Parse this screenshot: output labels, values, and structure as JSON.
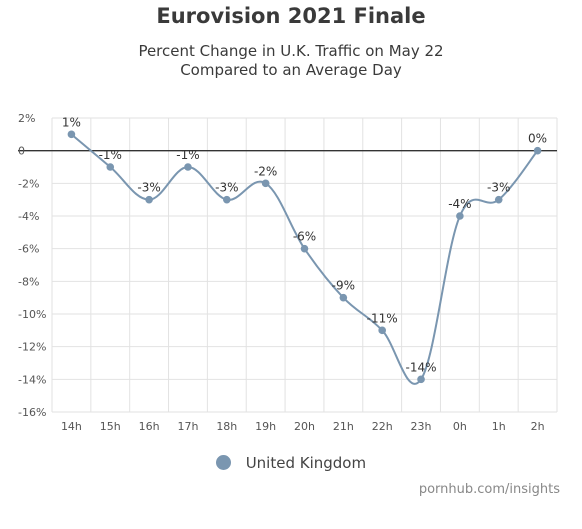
{
  "chart_data": {
    "type": "line",
    "title": "Eurovision 2021 Finale",
    "subtitle": [
      "Percent Change in U.K. Traffic on May 22",
      "Compared to an Average Day"
    ],
    "categories": [
      "14h",
      "15h",
      "16h",
      "17h",
      "18h",
      "19h",
      "20h",
      "21h",
      "22h",
      "23h",
      "0h",
      "1h",
      "2h"
    ],
    "series": [
      {
        "name": "United Kingdom",
        "values": [
          1,
          -1,
          -3,
          -1,
          -3,
          -2,
          -6,
          -9,
          -11,
          -14,
          -4,
          -3,
          0
        ],
        "labels": [
          "1%",
          "-1%",
          "-3%",
          "-1%",
          "-3%",
          "-2%",
          "-6%",
          "-9%",
          "-11%",
          "-14%",
          "-4%",
          "-3%",
          "0%"
        ],
        "color": "#7a96b0"
      }
    ],
    "yticks": [
      2,
      0,
      -2,
      -4,
      -6,
      -8,
      -10,
      -12,
      -14,
      -16
    ],
    "ytick_labels": [
      "2%",
      "0",
      "-2%",
      "-4%",
      "-6%",
      "-8%",
      "-10%",
      "-12%",
      "-14%",
      "-16%"
    ],
    "ylim": [
      -16,
      2
    ],
    "grid": true,
    "legend": "bottom-center"
  },
  "credit": "pornhub.com/insights"
}
